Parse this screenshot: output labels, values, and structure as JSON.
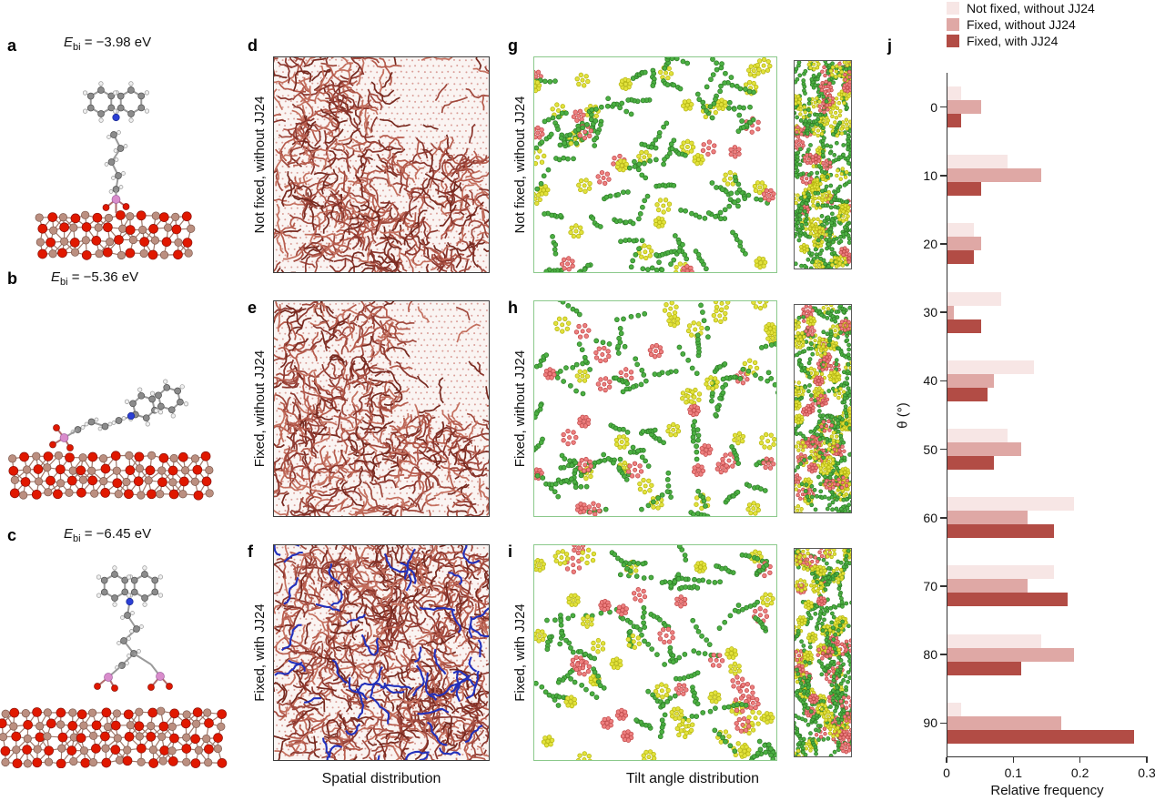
{
  "panels": {
    "a": {
      "label": "a",
      "ebi": {
        "sym": "E",
        "sub": "bi",
        "rest": " = −3.98 eV"
      }
    },
    "b": {
      "label": "b",
      "ebi": {
        "sym": "E",
        "sub": "bi",
        "rest": " = −5.36 eV"
      }
    },
    "c": {
      "label": "c",
      "ebi": {
        "sym": "E",
        "sub": "bi",
        "rest": " = −6.45 eV"
      }
    },
    "d": {
      "label": "d",
      "side_label": "Not fixed, without JJ24"
    },
    "e": {
      "label": "e",
      "side_label": "Fixed, without JJ24"
    },
    "f": {
      "label": "f",
      "side_label": "Fixed, with JJ24"
    },
    "g": {
      "label": "g",
      "side_label": "Not fixed, without JJ24"
    },
    "h": {
      "label": "h",
      "side_label": "Fixed, without JJ24"
    },
    "i": {
      "label": "i",
      "side_label": "Fixed, with JJ24"
    },
    "j": {
      "label": "j"
    }
  },
  "captions": {
    "spatial": "Spatial distribution",
    "tilt": "Tilt angle distribution"
  },
  "palette": {
    "spatial_molecule": "#9c4036",
    "spatial_dot": "#c05a50",
    "jj24_chain": "#2230bb",
    "tilt_green": "#4cb043",
    "tilt_green_dark": "#2e7d27",
    "tilt_yellow": "#e2e23c",
    "tilt_yellow_dark": "#b5b510",
    "tilt_red": "#ee8080",
    "tilt_red_dark": "#c04848",
    "substrate_red": "#e01800",
    "substrate_tan": "#bb8f80",
    "axis": "#333333"
  },
  "chart_data": {
    "type": "bar",
    "orientation": "horizontal",
    "title": "",
    "categories": [
      "0",
      "10",
      "20",
      "30",
      "40",
      "50",
      "60",
      "70",
      "80",
      "90"
    ],
    "series": [
      {
        "name": "Not fixed, without JJ24",
        "color": "#f7e6e5",
        "values": [
          0.02,
          0.09,
          0.04,
          0.08,
          0.13,
          0.09,
          0.19,
          0.16,
          0.14,
          0.02
        ]
      },
      {
        "name": "Fixed, without JJ24",
        "color": "#dfa8a5",
        "values": [
          0.05,
          0.14,
          0.05,
          0.01,
          0.07,
          0.11,
          0.12,
          0.12,
          0.19,
          0.17
        ]
      },
      {
        "name": "Fixed, with JJ24",
        "color": "#b24c45",
        "values": [
          0.02,
          0.05,
          0.04,
          0.05,
          0.06,
          0.07,
          0.16,
          0.18,
          0.11,
          0.28
        ]
      }
    ],
    "xlabel": "Relative frequency",
    "ylabel": "θ (°)",
    "xlim": [
      0,
      0.3
    ],
    "xticks": [
      "0",
      "0.1",
      "0.2",
      "0.3"
    ],
    "legend_position": "top-right",
    "grid": false
  }
}
